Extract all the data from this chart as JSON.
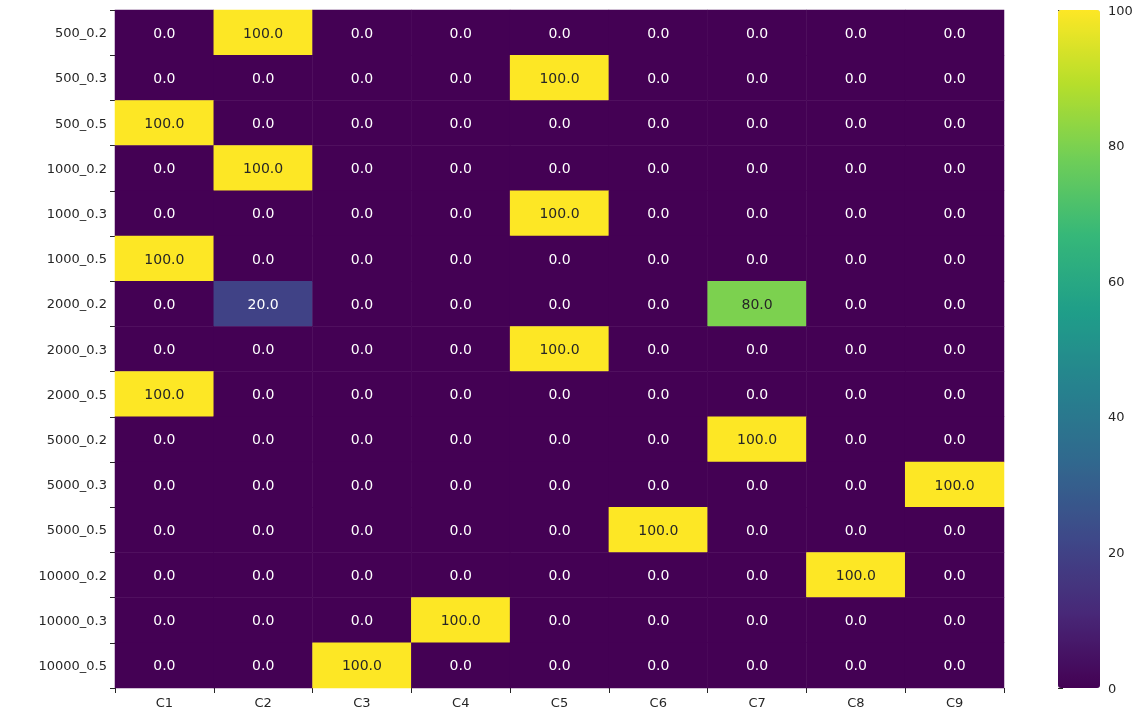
{
  "chart_data": {
    "type": "heatmap",
    "categories": [
      "C1",
      "C2",
      "C3",
      "C4",
      "C5",
      "C6",
      "C7",
      "C8",
      "C9"
    ],
    "y_categories": [
      "500_0.2",
      "500_0.3",
      "500_0.5",
      "1000_0.2",
      "1000_0.3",
      "1000_0.5",
      "2000_0.2",
      "2000_0.3",
      "2000_0.5",
      "5000_0.2",
      "5000_0.3",
      "5000_0.5",
      "10000_0.2",
      "10000_0.3",
      "10000_0.5"
    ],
    "cells": [
      [
        0,
        100,
        0,
        0,
        0,
        0,
        0,
        0,
        0
      ],
      [
        0,
        0,
        0,
        0,
        100,
        0,
        0,
        0,
        0
      ],
      [
        100,
        0,
        0,
        0,
        0,
        0,
        0,
        0,
        0
      ],
      [
        0,
        100,
        0,
        0,
        0,
        0,
        0,
        0,
        0
      ],
      [
        0,
        0,
        0,
        0,
        100,
        0,
        0,
        0,
        0
      ],
      [
        100,
        0,
        0,
        0,
        0,
        0,
        0,
        0,
        0
      ],
      [
        0,
        20,
        0,
        0,
        0,
        0,
        80,
        0,
        0
      ],
      [
        0,
        0,
        0,
        0,
        100,
        0,
        0,
        0,
        0
      ],
      [
        100,
        0,
        0,
        0,
        0,
        0,
        0,
        0,
        0
      ],
      [
        0,
        0,
        0,
        0,
        0,
        0,
        100,
        0,
        0
      ],
      [
        0,
        0,
        0,
        0,
        0,
        0,
        0,
        0,
        100
      ],
      [
        0,
        0,
        0,
        0,
        0,
        100,
        0,
        0,
        0
      ],
      [
        0,
        0,
        0,
        0,
        0,
        0,
        0,
        100,
        0
      ],
      [
        0,
        0,
        0,
        100,
        0,
        0,
        0,
        0,
        0
      ],
      [
        0,
        0,
        100,
        0,
        0,
        0,
        0,
        0,
        0
      ]
    ],
    "cell_labels": [
      [
        "0.0",
        "100.0",
        "0.0",
        "0.0",
        "0.0",
        "0.0",
        "0.0",
        "0.0",
        "0.0"
      ],
      [
        "0.0",
        "0.0",
        "0.0",
        "0.0",
        "100.0",
        "0.0",
        "0.0",
        "0.0",
        "0.0"
      ],
      [
        "100.0",
        "0.0",
        "0.0",
        "0.0",
        "0.0",
        "0.0",
        "0.0",
        "0.0",
        "0.0"
      ],
      [
        "0.0",
        "100.0",
        "0.0",
        "0.0",
        "0.0",
        "0.0",
        "0.0",
        "0.0",
        "0.0"
      ],
      [
        "0.0",
        "0.0",
        "0.0",
        "0.0",
        "100.0",
        "0.0",
        "0.0",
        "0.0",
        "0.0"
      ],
      [
        "100.0",
        "0.0",
        "0.0",
        "0.0",
        "0.0",
        "0.0",
        "0.0",
        "0.0",
        "0.0"
      ],
      [
        "0.0",
        "20.0",
        "0.0",
        "0.0",
        "0.0",
        "0.0",
        "80.0",
        "0.0",
        "0.0"
      ],
      [
        "0.0",
        "0.0",
        "0.0",
        "0.0",
        "100.0",
        "0.0",
        "0.0",
        "0.0",
        "0.0"
      ],
      [
        "100.0",
        "0.0",
        "0.0",
        "0.0",
        "0.0",
        "0.0",
        "0.0",
        "0.0",
        "0.0"
      ],
      [
        "0.0",
        "0.0",
        "0.0",
        "0.0",
        "0.0",
        "0.0",
        "100.0",
        "0.0",
        "0.0"
      ],
      [
        "0.0",
        "0.0",
        "0.0",
        "0.0",
        "0.0",
        "0.0",
        "0.0",
        "0.0",
        "100.0"
      ],
      [
        "0.0",
        "0.0",
        "0.0",
        "0.0",
        "0.0",
        "100.0",
        "0.0",
        "0.0",
        "0.0"
      ],
      [
        "0.0",
        "0.0",
        "0.0",
        "0.0",
        "0.0",
        "0.0",
        "0.0",
        "100.0",
        "0.0"
      ],
      [
        "0.0",
        "0.0",
        "0.0",
        "100.0",
        "0.0",
        "0.0",
        "0.0",
        "0.0",
        "0.0"
      ],
      [
        "0.0",
        "0.0",
        "100.0",
        "0.0",
        "0.0",
        "0.0",
        "0.0",
        "0.0",
        "0.0"
      ]
    ],
    "clim": [
      0,
      100
    ],
    "cticks": [
      0,
      20,
      40,
      60,
      80,
      100
    ]
  }
}
